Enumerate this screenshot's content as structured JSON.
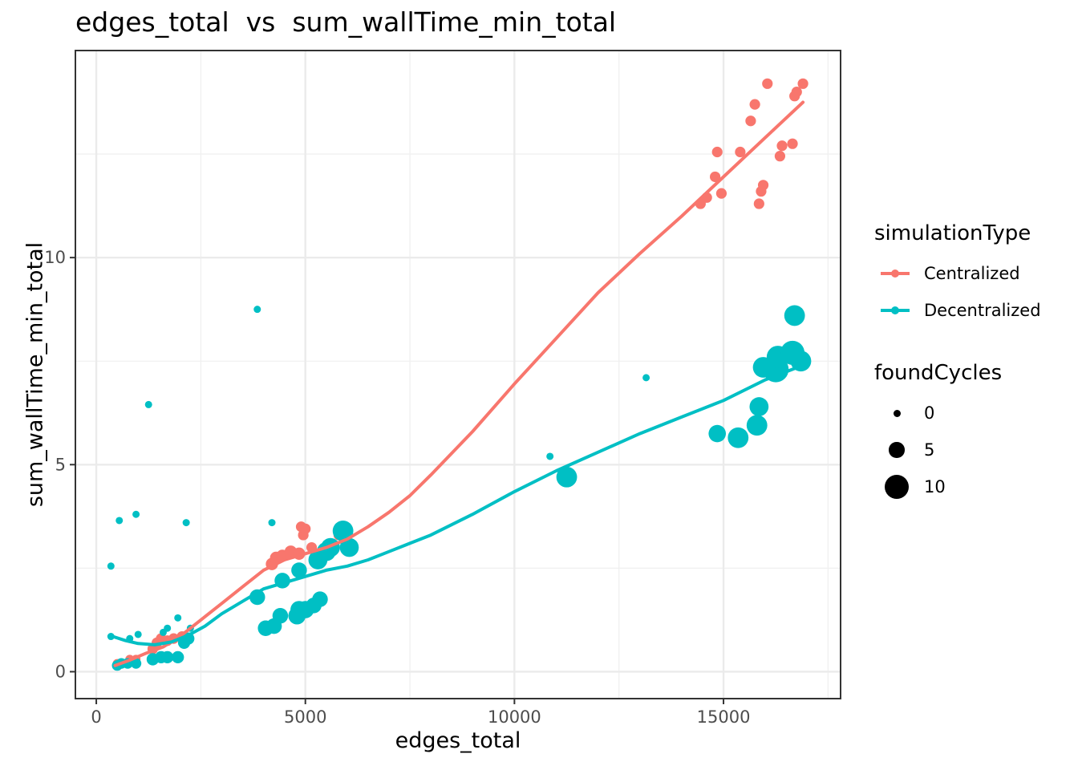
{
  "chart_data": {
    "type": "scatter",
    "title": "edges_total  vs  sum_wallTime_min_total",
    "xlabel": "edges_total",
    "ylabel": "sum_wallTime_min_total",
    "xlim": [
      -500,
      17800
    ],
    "ylim": [
      -0.65,
      15
    ],
    "x_ticks": [
      0,
      5000,
      10000,
      15000
    ],
    "x_tick_labels": [
      "0",
      "5000",
      "10000",
      "15000"
    ],
    "y_ticks": [
      0,
      5,
      10
    ],
    "y_tick_labels": [
      "0",
      "5",
      "10"
    ],
    "grid": true,
    "legend_placement": "right",
    "series": [
      {
        "name": "Centralized",
        "color": "#F8766D",
        "points": [
          [
            500,
            0.2,
            1
          ],
          [
            650,
            0.2,
            1
          ],
          [
            800,
            0.3,
            1
          ],
          [
            950,
            0.3,
            1
          ],
          [
            1350,
            0.55,
            2
          ],
          [
            1450,
            0.7,
            2
          ],
          [
            1550,
            0.8,
            2
          ],
          [
            1700,
            0.75,
            2
          ],
          [
            1850,
            0.8,
            2
          ],
          [
            2050,
            0.85,
            2
          ],
          [
            4200,
            2.6,
            3
          ],
          [
            4300,
            2.75,
            3
          ],
          [
            4450,
            2.8,
            3
          ],
          [
            4650,
            2.9,
            3
          ],
          [
            4850,
            2.85,
            3
          ],
          [
            4900,
            3.5,
            2
          ],
          [
            4950,
            3.3,
            2
          ],
          [
            5000,
            3.45,
            2
          ],
          [
            5150,
            3.0,
            2
          ],
          [
            5800,
            3.3,
            2
          ],
          [
            5900,
            3.4,
            2
          ],
          [
            14450,
            11.3,
            2
          ],
          [
            14600,
            11.45,
            2
          ],
          [
            14800,
            11.95,
            2
          ],
          [
            14850,
            12.55,
            2
          ],
          [
            14950,
            11.55,
            2
          ],
          [
            15400,
            12.55,
            2
          ],
          [
            15650,
            13.3,
            2
          ],
          [
            15750,
            13.7,
            2
          ],
          [
            15850,
            11.3,
            2
          ],
          [
            15900,
            11.6,
            2
          ],
          [
            15950,
            11.75,
            2
          ],
          [
            16050,
            14.2,
            2
          ],
          [
            16350,
            12.45,
            2
          ],
          [
            16400,
            12.7,
            2
          ],
          [
            16650,
            12.75,
            2
          ],
          [
            16700,
            13.9,
            2
          ],
          [
            16750,
            14.0,
            2
          ],
          [
            16900,
            14.2,
            2
          ]
        ]
      },
      {
        "name": "Decentralized",
        "color": "#00BFC4",
        "points": [
          [
            350,
            2.55,
            0
          ],
          [
            350,
            0.85,
            0
          ],
          [
            550,
            3.65,
            0
          ],
          [
            950,
            3.8,
            0
          ],
          [
            1000,
            0.9,
            0
          ],
          [
            800,
            0.8,
            0
          ],
          [
            1250,
            6.45,
            0
          ],
          [
            1600,
            0.95,
            0
          ],
          [
            1700,
            1.05,
            0
          ],
          [
            1950,
            1.3,
            0
          ],
          [
            2150,
            3.6,
            0
          ],
          [
            2250,
            1.05,
            0
          ],
          [
            3850,
            8.75,
            0
          ],
          [
            4200,
            3.6,
            0
          ],
          [
            10850,
            5.2,
            0
          ],
          [
            13150,
            7.1,
            0
          ],
          [
            500,
            0.15,
            2
          ],
          [
            600,
            0.2,
            2
          ],
          [
            750,
            0.2,
            2
          ],
          [
            950,
            0.2,
            2
          ],
          [
            1350,
            0.3,
            3
          ],
          [
            1550,
            0.35,
            3
          ],
          [
            1700,
            0.35,
            3
          ],
          [
            1950,
            0.35,
            3
          ],
          [
            2100,
            0.7,
            3
          ],
          [
            2200,
            0.8,
            3
          ],
          [
            3850,
            1.8,
            5
          ],
          [
            4050,
            1.05,
            5
          ],
          [
            4250,
            1.1,
            5
          ],
          [
            4400,
            1.35,
            5
          ],
          [
            4450,
            2.2,
            5
          ],
          [
            4800,
            1.35,
            6
          ],
          [
            4850,
            1.5,
            6
          ],
          [
            4850,
            2.45,
            5
          ],
          [
            5000,
            1.5,
            6
          ],
          [
            5200,
            1.6,
            5
          ],
          [
            5350,
            1.75,
            5
          ],
          [
            5300,
            2.7,
            7
          ],
          [
            5500,
            2.9,
            7
          ],
          [
            5600,
            3.0,
            7
          ],
          [
            5900,
            3.4,
            8
          ],
          [
            6050,
            3.0,
            7
          ],
          [
            11250,
            4.7,
            8
          ],
          [
            14850,
            5.75,
            6
          ],
          [
            15350,
            5.65,
            8
          ],
          [
            15800,
            5.95,
            8
          ],
          [
            15850,
            6.4,
            7
          ],
          [
            15950,
            7.35,
            8
          ],
          [
            16250,
            7.3,
            11
          ],
          [
            16300,
            7.6,
            9
          ],
          [
            16650,
            7.7,
            10
          ],
          [
            16700,
            8.6,
            8
          ],
          [
            16850,
            7.5,
            8
          ]
        ]
      }
    ],
    "smooth_lines": [
      {
        "name": "Centralized",
        "color": "#F8766D",
        "x": [
          450,
          800,
          1200,
          1600,
          2000,
          2500,
          3000,
          3500,
          4000,
          4500,
          5000,
          5500,
          6000,
          6500,
          7000,
          7500,
          8000,
          9000,
          10000,
          11000,
          12000,
          13000,
          14000,
          15000,
          16000,
          16900
        ],
        "y": [
          0.15,
          0.28,
          0.45,
          0.6,
          0.85,
          1.25,
          1.65,
          2.05,
          2.45,
          2.7,
          2.85,
          3.0,
          3.2,
          3.5,
          3.85,
          4.25,
          4.75,
          5.8,
          6.95,
          8.05,
          9.15,
          10.1,
          11.0,
          11.95,
          12.9,
          13.75
        ]
      },
      {
        "name": "Decentralized",
        "color": "#00BFC4",
        "x": [
          400,
          700,
          1000,
          1400,
          1800,
          2200,
          2600,
          3000,
          3500,
          4000,
          4500,
          5000,
          5500,
          6000,
          6500,
          7000,
          7500,
          8000,
          9000,
          10000,
          11000,
          12000,
          13000,
          14000,
          15000,
          16000,
          16900
        ],
        "y": [
          0.85,
          0.75,
          0.68,
          0.65,
          0.72,
          0.88,
          1.1,
          1.4,
          1.7,
          2.0,
          2.15,
          2.3,
          2.45,
          2.55,
          2.7,
          2.9,
          3.1,
          3.3,
          3.8,
          4.35,
          4.85,
          5.3,
          5.75,
          6.15,
          6.55,
          7.05,
          7.4
        ]
      }
    ],
    "legends": {
      "color": {
        "title": "simulationType",
        "items": [
          {
            "label": "Centralized",
            "color": "#F8766D"
          },
          {
            "label": "Decentralized",
            "color": "#00BFC4"
          }
        ]
      },
      "size": {
        "title": "foundCycles",
        "items": [
          {
            "label": "0",
            "value": 0
          },
          {
            "label": "5",
            "value": 5
          },
          {
            "label": "10",
            "value": 10
          }
        ]
      }
    }
  }
}
